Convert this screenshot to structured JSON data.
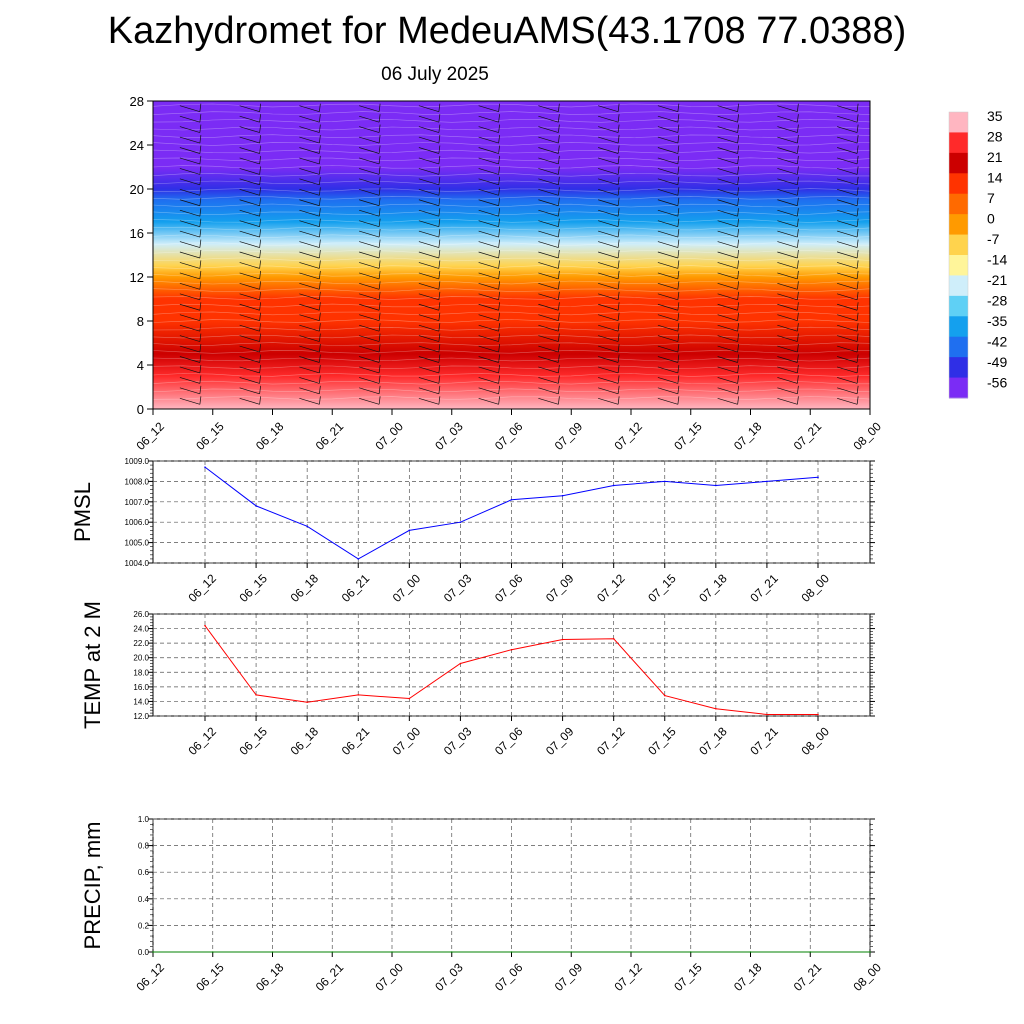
{
  "title": "Kazhydromet for MedeuAMS(43.1708 77.0388)",
  "subtitle": "06 July 2025",
  "time_labels": [
    "06_12",
    "06_15",
    "06_18",
    "06_21",
    "07_00",
    "07_03",
    "07_06",
    "07_09",
    "07_12",
    "07_15",
    "07_18",
    "07_21",
    "08_00"
  ],
  "colorbar": {
    "labels": [
      "35",
      "28",
      "21",
      "14",
      "7",
      "0",
      "-7",
      "-14",
      "-21",
      "-28",
      "-35",
      "-42",
      "-49",
      "-56"
    ],
    "colors": [
      "#ffb6c1",
      "#ff2a2a",
      "#cc0000",
      "#ff3300",
      "#ff6a00",
      "#ff9a00",
      "#ffd34d",
      "#fff59a",
      "#cfeefa",
      "#5fd0f5",
      "#14a0ee",
      "#1f6ff0",
      "#2f2fe6",
      "#7b2cf5"
    ]
  },
  "chart_data": [
    {
      "type": "heatmap",
      "title": "",
      "ylabel": "",
      "y_ticks": [
        "0",
        "4",
        "8",
        "12",
        "16",
        "20",
        "24",
        "28"
      ],
      "ylim": [
        0,
        28
      ],
      "x": [
        "06_12",
        "06_15",
        "06_18",
        "06_21",
        "07_00",
        "07_03",
        "07_06",
        "07_09",
        "07_12",
        "07_15",
        "07_18",
        "07_21",
        "08_00"
      ],
      "levels": [
        {
          "height": 0,
          "value": 34
        },
        {
          "height": 3,
          "value": 30
        },
        {
          "height": 5,
          "value": 24
        },
        {
          "height": 8,
          "value": 16
        },
        {
          "height": 10,
          "value": 10
        },
        {
          "height": 12,
          "value": 2
        },
        {
          "height": 13,
          "value": -12
        },
        {
          "height": 15,
          "value": -25
        },
        {
          "height": 17,
          "value": -38
        },
        {
          "height": 19,
          "value": -48
        },
        {
          "height": 20,
          "value": -56
        },
        {
          "height": 22,
          "value": -60
        },
        {
          "height": 28,
          "value": -60
        }
      ],
      "overlay": "wind barbs",
      "grid": false
    },
    {
      "type": "line",
      "ylabel": "PMSL",
      "x": [
        "06_12",
        "06_15",
        "06_18",
        "06_21",
        "07_00",
        "07_03",
        "07_06",
        "07_09",
        "07_12",
        "07_15",
        "07_18",
        "07_21",
        "08_00"
      ],
      "y_ticks": [
        "1004.0",
        "1005.0",
        "1006.0",
        "1007.0",
        "1008.0",
        "1009.0"
      ],
      "ylim": [
        1004,
        1009
      ],
      "series": [
        {
          "values": [
            1008.7,
            1006.8,
            1005.8,
            1004.2,
            1005.6,
            1006.0,
            1007.1,
            1007.3,
            1007.8,
            1008.0,
            1007.8,
            1008.0,
            1008.2
          ],
          "color": "#0000ff"
        }
      ],
      "grid": true
    },
    {
      "type": "line",
      "ylabel": "TEMP at 2 M",
      "x": [
        "06_12",
        "06_15",
        "06_18",
        "06_21",
        "07_00",
        "07_03",
        "07_06",
        "07_09",
        "07_12",
        "07_15",
        "07_18",
        "07_21",
        "08_00"
      ],
      "y_ticks": [
        "12.0",
        "14.0",
        "16.0",
        "18.0",
        "20.0",
        "22.0",
        "24.0",
        "26.0"
      ],
      "ylim": [
        12,
        26
      ],
      "series": [
        {
          "values": [
            24.4,
            14.9,
            13.9,
            14.9,
            14.4,
            19.2,
            21.1,
            22.5,
            22.6,
            14.8,
            13.0,
            12.2,
            12.2
          ],
          "color": "#ff0000"
        }
      ],
      "grid": true
    },
    {
      "type": "line",
      "ylabel": "PRECIP, mm",
      "x": [
        "06_12",
        "06_15",
        "06_18",
        "06_21",
        "07_00",
        "07_03",
        "07_06",
        "07_09",
        "07_12",
        "07_15",
        "07_18",
        "07_21",
        "08_00"
      ],
      "y_ticks": [
        "0.0",
        "0.2",
        "0.4",
        "0.6",
        "0.8",
        "1.0"
      ],
      "ylim": [
        0,
        1
      ],
      "series": [
        {
          "values": [
            0,
            0,
            0,
            0,
            0,
            0,
            0,
            0,
            0,
            0,
            0,
            0,
            0
          ],
          "color": "#008000"
        }
      ],
      "grid": true
    }
  ]
}
